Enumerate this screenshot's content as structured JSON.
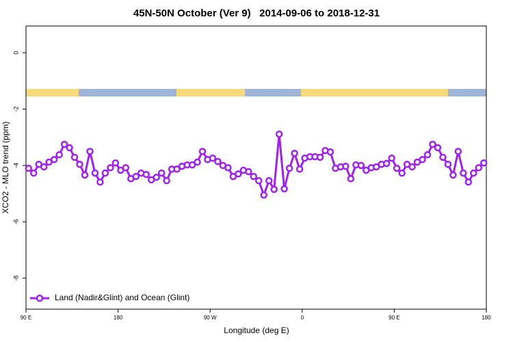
{
  "chart_data": {
    "type": "line",
    "title": "45N-50N October (Ver 9)   2014-09-06 to 2018-12-31",
    "x_label": "Longitude (deg E)",
    "y_label": "XCO2 - MLO trend (ppm)",
    "xlim": [
      90,
      540
    ],
    "xticks": [
      {
        "value": 90,
        "label": "90 E"
      },
      {
        "value": 180,
        "label": "180"
      },
      {
        "value": 270,
        "label": "90 W"
      },
      {
        "value": 360,
        "label": "0"
      },
      {
        "value": 450,
        "label": "90 E"
      },
      {
        "value": 540,
        "label": "180"
      }
    ],
    "ylim": [
      -9.1,
      0.95
    ],
    "yticks": [
      0,
      -2,
      -4,
      -6,
      -8
    ],
    "legend": "bottom-left",
    "x": [
      92.5,
      97.5,
      102.5,
      107.5,
      112.5,
      117.5,
      122.5,
      127.5,
      132.5,
      137.5,
      142.5,
      147.5,
      152.5,
      157.5,
      162.5,
      167.5,
      172.5,
      177.5,
      182.5,
      187.5,
      192.5,
      197.5,
      202.5,
      207.5,
      212.5,
      217.5,
      222.5,
      227.5,
      232.5,
      237.5,
      242.5,
      247.5,
      252.5,
      257.5,
      262.5,
      267.5,
      272.5,
      277.5,
      282.5,
      287.5,
      292.5,
      297.5,
      302.5,
      307.5,
      312.5,
      317.5,
      322.5,
      327.5,
      332.5,
      337.5,
      342.5,
      347.5,
      352.5,
      357.5,
      362.5,
      367.5,
      372.5,
      377.5,
      382.5,
      387.5,
      392.5,
      397.5,
      402.5,
      407.5,
      412.5,
      417.5,
      422.5,
      427.5,
      432.5,
      437.5,
      442.5,
      447.5,
      452.5,
      457.5,
      462.5,
      467.5,
      472.5,
      477.5,
      482.5,
      487.5,
      492.5,
      497.5,
      502.5,
      507.5,
      512.5,
      517.5,
      522.5,
      527.5,
      532.5,
      537.5
    ],
    "series": [
      {
        "name": "Land (Nadir&Glint) and Ocean (Glint)",
        "color": "#a020f0",
        "values": [
          -4.1,
          -4.27,
          -3.96,
          -4.05,
          -3.88,
          -3.79,
          -3.62,
          -3.25,
          -3.37,
          -3.71,
          -3.96,
          -4.34,
          -3.5,
          -4.27,
          -4.59,
          -4.27,
          -4.08,
          -3.91,
          -4.17,
          -4.08,
          -4.47,
          -4.39,
          -4.27,
          -4.32,
          -4.51,
          -4.42,
          -4.27,
          -4.54,
          -4.13,
          -4.13,
          -4.03,
          -3.98,
          -3.98,
          -3.88,
          -3.5,
          -3.79,
          -3.74,
          -3.86,
          -4.0,
          -4.08,
          -4.39,
          -4.3,
          -4.17,
          -4.22,
          -4.39,
          -4.54,
          -5.05,
          -4.54,
          -4.85,
          -2.89,
          -4.83,
          -4.1,
          -3.57,
          -4.13,
          -3.74,
          -3.69,
          -3.69,
          -3.71,
          -3.47,
          -3.52,
          -4.1,
          -4.05,
          -4.03,
          -4.47,
          -3.98,
          -4.0,
          -4.17,
          -4.08,
          -4.05,
          -3.96,
          -3.93,
          -3.74,
          -4.1,
          -4.27,
          -3.96,
          -4.05,
          -3.88,
          -3.79,
          -3.62,
          -3.25,
          -3.37,
          -3.71,
          -3.96,
          -4.34,
          -3.5,
          -4.27,
          -4.59,
          -4.27,
          -4.08,
          -3.91
        ]
      }
    ]
  }
}
